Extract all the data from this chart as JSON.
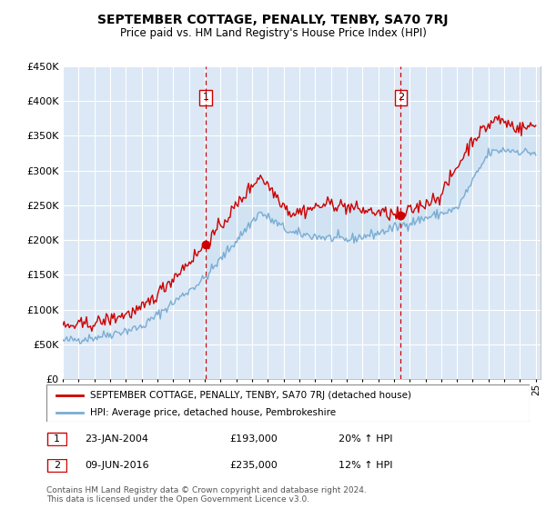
{
  "title": "SEPTEMBER COTTAGE, PENALLY, TENBY, SA70 7RJ",
  "subtitle": "Price paid vs. HM Land Registry's House Price Index (HPI)",
  "ylim": [
    0,
    450000
  ],
  "yticks": [
    0,
    50000,
    100000,
    150000,
    200000,
    250000,
    300000,
    350000,
    400000,
    450000
  ],
  "background_color": "#dce8f5",
  "red_color": "#cc0000",
  "blue_color": "#7aadd4",
  "sale1_x": 2004.07,
  "sale1_price": 193000,
  "sale1_label": "23-JAN-2004",
  "sale2_x": 2016.44,
  "sale2_price": 235000,
  "sale2_label": "09-JUN-2016",
  "legend_line1": "SEPTEMBER COTTAGE, PENALLY, TENBY, SA70 7RJ (detached house)",
  "legend_line2": "HPI: Average price, detached house, Pembrokeshire",
  "footer": "Contains HM Land Registry data © Crown copyright and database right 2024.\nThis data is licensed under the Open Government Licence v3.0.",
  "xstart_year": 1995,
  "xend_year": 2025
}
